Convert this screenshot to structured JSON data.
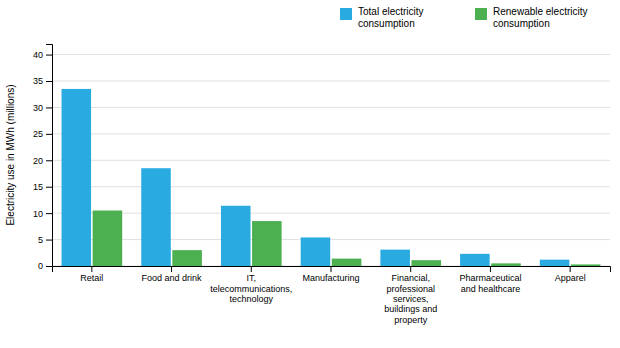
{
  "chart_data": {
    "type": "bar",
    "categories": [
      "Retail",
      "Food and drink",
      "IT,\ntelecommunications,\ntechnology",
      "Manufacturing",
      "Financial,\nprofessional\nservices,\nbuildings and\nproperty",
      "Pharmaceutical\nand healthcare",
      "Apparel"
    ],
    "series": [
      {
        "name": "Total electricity\nconsumption",
        "color": "#29ABE2",
        "values": [
          33.5,
          18.5,
          11.4,
          5.4,
          3.1,
          2.3,
          1.2
        ]
      },
      {
        "name": "Renewable electricity\nconsumption",
        "color": "#4CAF50",
        "values": [
          10.5,
          3.0,
          8.5,
          1.4,
          1.1,
          0.5,
          0.3
        ]
      }
    ],
    "y_label": "Electricity use in MWh (millions)",
    "ylim": [
      0,
      42
    ],
    "yticks": [
      0,
      5,
      10,
      15,
      20,
      25,
      30,
      35,
      40
    ],
    "grid": true,
    "legend": "upper right"
  }
}
